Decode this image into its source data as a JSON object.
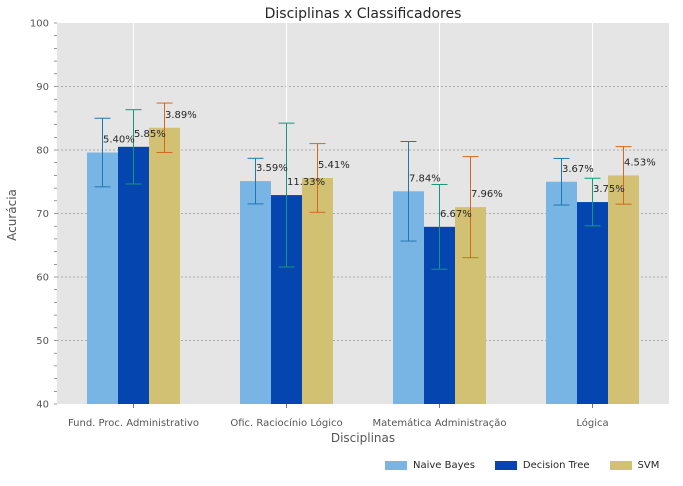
{
  "chart_data": {
    "type": "bar",
    "title": "Disciplinas x Classificadores",
    "xlabel": "Disciplinas",
    "ylabel": "Acurácia",
    "ylim": [
      40,
      100
    ],
    "yticks": [
      40,
      50,
      60,
      70,
      80,
      90,
      100
    ],
    "grid": true,
    "legend_position": "bottom-right",
    "categories": [
      "Fund. Proc. Administrativo",
      "Ofic. Raciocínio Lógico",
      "Matemática Administração",
      "Lógica"
    ],
    "series": [
      {
        "name": "Naive Bayes",
        "color": "#78b4e4",
        "err_color": "#1f77b4",
        "values": [
          79.6,
          75.1,
          73.5,
          75.0
        ],
        "errors": [
          5.4,
          3.59,
          7.84,
          3.67
        ],
        "labels": [
          "5.40%",
          "3.59%",
          "7.84%",
          "3.67%"
        ]
      },
      {
        "name": "Decision Tree",
        "color": "#0545b0",
        "err_color": "#13987a",
        "values": [
          80.5,
          72.9,
          67.9,
          71.8
        ],
        "errors": [
          5.85,
          11.33,
          6.67,
          3.75
        ],
        "labels": [
          "5.85%",
          "11.33%",
          "6.67%",
          "3.75%"
        ]
      },
      {
        "name": "SVM",
        "color": "#d2c172",
        "err_color": "#d2691e",
        "values": [
          83.5,
          75.6,
          71.0,
          76.0
        ],
        "errors": [
          3.89,
          5.41,
          7.96,
          4.53
        ],
        "labels": [
          "3.89%",
          "5.41%",
          "7.96%",
          "4.53%"
        ]
      }
    ]
  }
}
